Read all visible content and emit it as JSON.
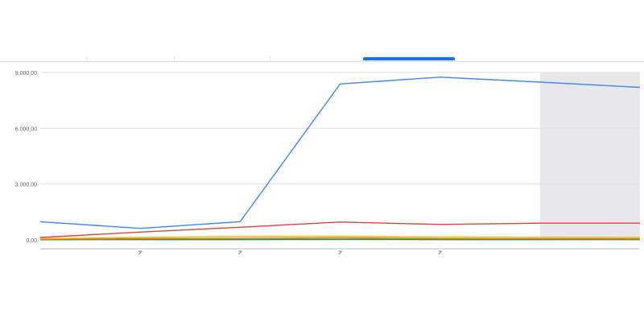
{
  "tabs": [
    {
      "label": "",
      "active": false
    },
    {
      "label": "",
      "active": false
    },
    {
      "label": "",
      "active": false
    },
    {
      "label": "",
      "active": true
    },
    {
      "label": "",
      "active": false
    }
  ],
  "colors": {
    "accent": "#1a73e8",
    "series_blue": "#4285f4",
    "series_red": "#db4437",
    "series_yellow": "#f4b400",
    "series_orange": "#e8710a",
    "series_green": "#0f9d58",
    "highlight": "#e8e8ec"
  },
  "chart_data": {
    "type": "line",
    "ylim": [
      0,
      9000
    ],
    "y_ticks": [
      {
        "value": 0,
        "label": "0,00"
      },
      {
        "value": 3000,
        "label": "3.000,00"
      },
      {
        "value": 6000,
        "label": "6.000,00"
      },
      {
        "value": 9000,
        "label": "9.000,00"
      }
    ],
    "x": [
      0,
      1,
      2,
      3,
      4,
      5,
      6
    ],
    "x_ticks": [
      1,
      2,
      3,
      4
    ],
    "highlight_x_start": 5,
    "series": [
      {
        "color": "#4285f4",
        "values": [
          980,
          620,
          980,
          8380,
          8750,
          8480,
          8200
        ]
      },
      {
        "color": "#db4437",
        "values": [
          130,
          420,
          680,
          960,
          830,
          900,
          900
        ]
      },
      {
        "color": "#f4b400",
        "values": [
          60,
          130,
          180,
          200,
          150,
          140,
          130
        ]
      },
      {
        "color": "#e8710a",
        "values": [
          30,
          60,
          80,
          110,
          70,
          60,
          50
        ]
      },
      {
        "color": "#0f9d58",
        "values": [
          10,
          20,
          20,
          30,
          20,
          20,
          20
        ]
      }
    ]
  }
}
